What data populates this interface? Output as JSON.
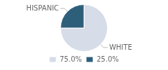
{
  "chart_data": {
    "type": "pie",
    "categories": [
      "WHITE",
      "HISPANIC"
    ],
    "values": [
      75.0,
      25.0
    ],
    "value_labels": [
      "75.0%",
      "25.0%"
    ],
    "colors": [
      "#d6dde8",
      "#2e5f7a"
    ],
    "legend": "bottom"
  }
}
